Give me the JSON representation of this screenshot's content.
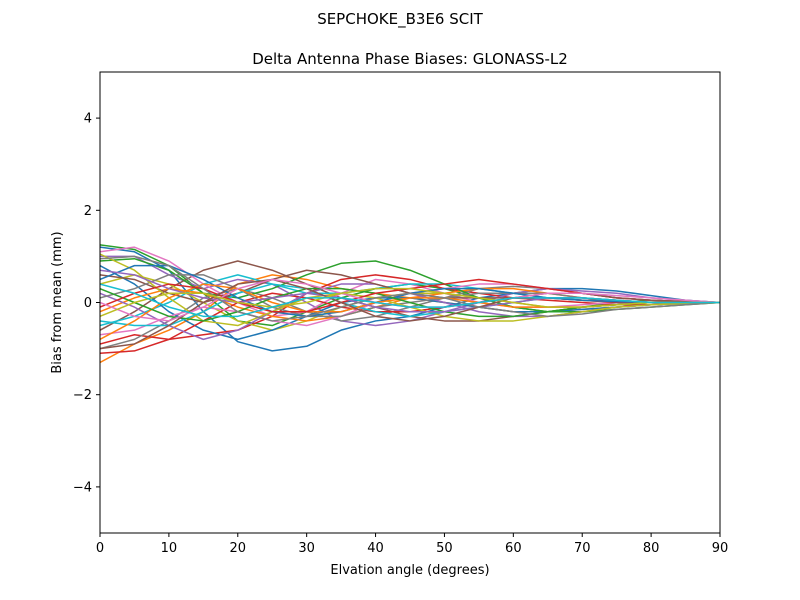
{
  "chart_data": {
    "type": "line",
    "suptitle": "SEPCHOKE_B3E6   SCIT",
    "title": "Delta Antenna Phase Biases: GLONASS-L2",
    "xlabel": "Elvation angle (degrees)",
    "ylabel": "Bias from mean (mm)",
    "xlim": [
      0,
      90
    ],
    "ylim": [
      -5,
      5
    ],
    "xticks": [
      0,
      10,
      20,
      30,
      40,
      50,
      60,
      70,
      80,
      90
    ],
    "yticks": [
      -4,
      -2,
      0,
      2,
      4
    ],
    "grid": false,
    "legend": "none",
    "x": [
      0,
      5,
      10,
      15,
      20,
      25,
      30,
      35,
      40,
      45,
      50,
      55,
      60,
      65,
      70,
      75,
      80,
      85,
      90
    ],
    "colors": [
      "#1f77b4",
      "#ff7f0e",
      "#2ca02c",
      "#d62728",
      "#9467bd",
      "#8c564b",
      "#e377c2",
      "#7f7f7f",
      "#bcbd22",
      "#17becf"
    ],
    "series": [
      {
        "values": [
          1.2,
          1.1,
          0.7,
          -0.2,
          -0.85,
          -1.05,
          -0.95,
          -0.6,
          -0.4,
          -0.3,
          -0.1,
          0.1,
          0.2,
          0.3,
          0.3,
          0.25,
          0.15,
          0.05,
          0
        ]
      },
      {
        "values": [
          -1.3,
          -0.9,
          -0.6,
          -0.2,
          0.4,
          0.6,
          0.5,
          0.3,
          0.2,
          0.1,
          0.0,
          -0.1,
          -0.2,
          -0.2,
          -0.15,
          -0.1,
          -0.05,
          0.0,
          0
        ]
      },
      {
        "values": [
          1.25,
          1.15,
          0.8,
          0.2,
          -0.4,
          -0.5,
          -0.2,
          0.1,
          0.3,
          0.4,
          0.3,
          0.1,
          -0.1,
          -0.2,
          -0.1,
          0.0,
          0.05,
          0.02,
          0
        ]
      },
      {
        "values": [
          -0.9,
          -0.7,
          -0.8,
          -0.7,
          -0.6,
          -0.3,
          0.2,
          0.5,
          0.6,
          0.5,
          0.3,
          0.2,
          0.1,
          0.05,
          0.0,
          -0.05,
          -0.05,
          -0.02,
          0
        ]
      },
      {
        "values": [
          1.0,
          1.0,
          0.6,
          0.3,
          0.5,
          0.4,
          0.0,
          -0.4,
          -0.5,
          -0.4,
          -0.2,
          0.0,
          0.2,
          0.3,
          0.25,
          0.2,
          0.1,
          0.05,
          0
        ]
      },
      {
        "values": [
          -0.6,
          -0.2,
          0.3,
          0.7,
          0.9,
          0.7,
          0.4,
          0.1,
          -0.1,
          -0.3,
          -0.4,
          -0.4,
          -0.3,
          -0.2,
          -0.1,
          -0.05,
          0.0,
          0.0,
          0
        ]
      },
      {
        "values": [
          1.1,
          1.2,
          0.9,
          0.4,
          0.0,
          -0.3,
          -0.2,
          0.2,
          0.5,
          0.4,
          0.2,
          0.0,
          -0.1,
          -0.1,
          -0.05,
          0.0,
          0.0,
          0.0,
          0
        ]
      },
      {
        "values": [
          -1.0,
          -0.8,
          -0.4,
          0.1,
          0.3,
          0.1,
          -0.2,
          -0.4,
          -0.3,
          -0.1,
          0.1,
          0.3,
          0.35,
          0.3,
          0.2,
          0.1,
          0.05,
          0.02,
          0
        ]
      },
      {
        "values": [
          0.4,
          0.6,
          0.4,
          0.0,
          -0.4,
          -0.6,
          -0.4,
          -0.1,
          0.1,
          0.2,
          0.2,
          0.1,
          0.0,
          -0.1,
          -0.1,
          -0.05,
          0.0,
          0.0,
          0
        ]
      },
      {
        "values": [
          -0.5,
          -0.3,
          0.0,
          0.4,
          0.6,
          0.4,
          0.2,
          0.2,
          0.3,
          0.4,
          0.4,
          0.3,
          0.2,
          0.1,
          0.05,
          0.0,
          0.0,
          0.0,
          0
        ]
      },
      {
        "values": [
          0.8,
          0.4,
          -0.2,
          -0.6,
          -0.8,
          -0.6,
          -0.3,
          0.0,
          0.1,
          0.1,
          0.0,
          -0.1,
          -0.2,
          -0.2,
          -0.15,
          -0.1,
          -0.05,
          -0.02,
          0
        ]
      },
      {
        "values": [
          -0.2,
          0.1,
          0.3,
          0.2,
          -0.1,
          -0.3,
          -0.4,
          -0.3,
          -0.1,
          0.1,
          0.2,
          0.3,
          0.3,
          0.2,
          0.1,
          0.05,
          0.0,
          0.0,
          0
        ]
      },
      {
        "values": [
          0.9,
          0.95,
          0.7,
          0.2,
          0.1,
          0.3,
          0.6,
          0.85,
          0.9,
          0.7,
          0.4,
          0.1,
          -0.1,
          -0.2,
          -0.2,
          -0.15,
          -0.1,
          -0.05,
          0
        ]
      },
      {
        "values": [
          -1.1,
          -1.05,
          -0.8,
          -0.4,
          0.0,
          0.2,
          0.1,
          -0.1,
          -0.2,
          -0.2,
          -0.1,
          0.0,
          0.1,
          0.1,
          0.05,
          0.0,
          0.0,
          0.0,
          0
        ]
      },
      {
        "values": [
          0.2,
          -0.1,
          -0.5,
          -0.8,
          -0.6,
          -0.2,
          0.2,
          0.4,
          0.4,
          0.2,
          0.0,
          -0.2,
          -0.3,
          -0.3,
          -0.2,
          -0.1,
          -0.05,
          -0.02,
          0
        ]
      },
      {
        "values": [
          0.6,
          0.5,
          0.2,
          0.0,
          0.2,
          0.5,
          0.7,
          0.6,
          0.4,
          0.2,
          0.1,
          0.1,
          0.1,
          0.1,
          0.05,
          0.05,
          0.0,
          0.0,
          0
        ]
      },
      {
        "values": [
          -0.7,
          -0.6,
          -0.3,
          -0.1,
          -0.2,
          -0.4,
          -0.5,
          -0.3,
          0.0,
          0.2,
          0.3,
          0.4,
          0.4,
          0.3,
          0.2,
          0.1,
          0.05,
          0.02,
          0
        ]
      },
      {
        "values": [
          0.1,
          0.3,
          0.6,
          0.6,
          0.3,
          -0.1,
          -0.3,
          -0.3,
          -0.1,
          0.0,
          0.1,
          0.2,
          0.2,
          0.2,
          0.1,
          0.05,
          0.0,
          0.0,
          0
        ]
      },
      {
        "values": [
          1.05,
          0.7,
          0.1,
          -0.4,
          -0.5,
          -0.2,
          0.1,
          0.2,
          0.1,
          -0.1,
          -0.3,
          -0.4,
          -0.4,
          -0.3,
          -0.2,
          -0.1,
          -0.05,
          -0.02,
          0
        ]
      },
      {
        "values": [
          -0.4,
          -0.5,
          -0.5,
          -0.2,
          0.2,
          0.4,
          0.3,
          0.0,
          -0.2,
          -0.3,
          -0.2,
          -0.1,
          0.0,
          0.1,
          0.1,
          0.05,
          0.0,
          0.0,
          0
        ]
      },
      {
        "values": [
          0.5,
          0.8,
          0.8,
          0.5,
          0.1,
          -0.2,
          -0.3,
          -0.2,
          0.0,
          0.2,
          0.3,
          0.3,
          0.2,
          0.1,
          0.05,
          0.02,
          0.0,
          0.0,
          0
        ]
      },
      {
        "values": [
          -0.8,
          -0.4,
          0.1,
          0.4,
          0.3,
          0.0,
          -0.2,
          -0.2,
          0.0,
          0.1,
          0.1,
          0.0,
          -0.1,
          -0.1,
          -0.1,
          -0.05,
          0.0,
          0.0,
          0
        ]
      },
      {
        "values": [
          0.3,
          0.0,
          -0.3,
          -0.4,
          -0.2,
          0.1,
          0.3,
          0.3,
          0.2,
          0.0,
          -0.2,
          -0.3,
          -0.3,
          -0.2,
          -0.1,
          -0.05,
          0.0,
          0.0,
          0
        ]
      },
      {
        "values": [
          -0.1,
          0.2,
          0.4,
          0.3,
          0.0,
          -0.2,
          -0.2,
          0.0,
          0.2,
          0.3,
          0.4,
          0.5,
          0.4,
          0.3,
          0.2,
          0.1,
          0.05,
          0.02,
          0
        ]
      },
      {
        "values": [
          0.7,
          0.6,
          0.3,
          0.1,
          0.0,
          0.1,
          0.2,
          0.1,
          -0.1,
          -0.2,
          -0.2,
          -0.1,
          0.0,
          0.1,
          0.1,
          0.05,
          0.0,
          0.0,
          0
        ]
      },
      {
        "values": [
          -1.0,
          -0.9,
          -0.5,
          0.0,
          0.4,
          0.5,
          0.3,
          0.0,
          -0.3,
          -0.4,
          -0.3,
          -0.1,
          0.1,
          0.2,
          0.2,
          0.1,
          0.05,
          0.02,
          0
        ]
      },
      {
        "values": [
          0.0,
          -0.3,
          -0.4,
          -0.1,
          0.3,
          0.5,
          0.4,
          0.2,
          0.0,
          -0.1,
          -0.1,
          0.0,
          0.1,
          0.2,
          0.2,
          0.15,
          0.1,
          0.05,
          0
        ]
      },
      {
        "values": [
          0.95,
          1.0,
          0.8,
          0.3,
          -0.2,
          -0.4,
          -0.3,
          -0.1,
          0.1,
          0.2,
          0.1,
          -0.1,
          -0.2,
          -0.3,
          -0.25,
          -0.15,
          -0.1,
          -0.05,
          0
        ]
      },
      {
        "values": [
          -0.3,
          0.0,
          0.2,
          0.2,
          0.0,
          -0.1,
          0.0,
          0.2,
          0.3,
          0.3,
          0.2,
          0.1,
          0.0,
          -0.1,
          -0.1,
          -0.05,
          0.0,
          0.0,
          0
        ]
      },
      {
        "values": [
          0.4,
          0.2,
          -0.1,
          -0.3,
          -0.3,
          -0.1,
          0.1,
          0.1,
          0.0,
          -0.1,
          -0.1,
          0.0,
          0.1,
          0.1,
          0.1,
          0.05,
          0.0,
          0.0,
          0
        ]
      }
    ]
  }
}
